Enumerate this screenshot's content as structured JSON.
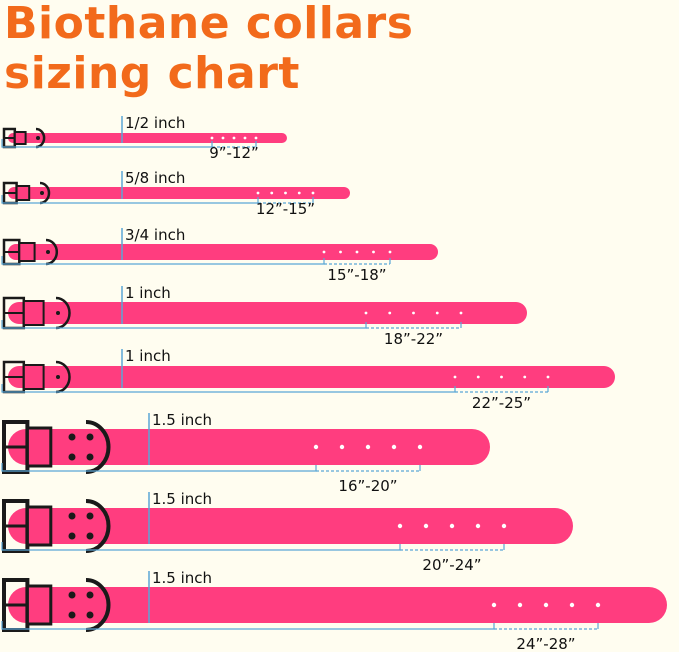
{
  "title": {
    "line1": "Biothane collars",
    "line2": "sizing chart"
  },
  "colors": {
    "title": "#f26a1b",
    "strap": "#ff3d7f",
    "hardware": "#1a1a1a",
    "measure_line": "#5aa7d6",
    "background": "#fffdf0"
  },
  "collars": [
    {
      "width": "1/2 inch",
      "size": "9”-12”"
    },
    {
      "width": "5/8 inch",
      "size": "12”-15”"
    },
    {
      "width": "3/4 inch",
      "size": "15”-18”"
    },
    {
      "width": "1 inch",
      "size": "18”-22”"
    },
    {
      "width": "1 inch",
      "size": "22”-25”"
    },
    {
      "width": "1.5 inch",
      "size": "16”-20”"
    },
    {
      "width": "1.5 inch",
      "size": "20”-24”"
    },
    {
      "width": "1.5 inch",
      "size": "24”-28”"
    }
  ]
}
